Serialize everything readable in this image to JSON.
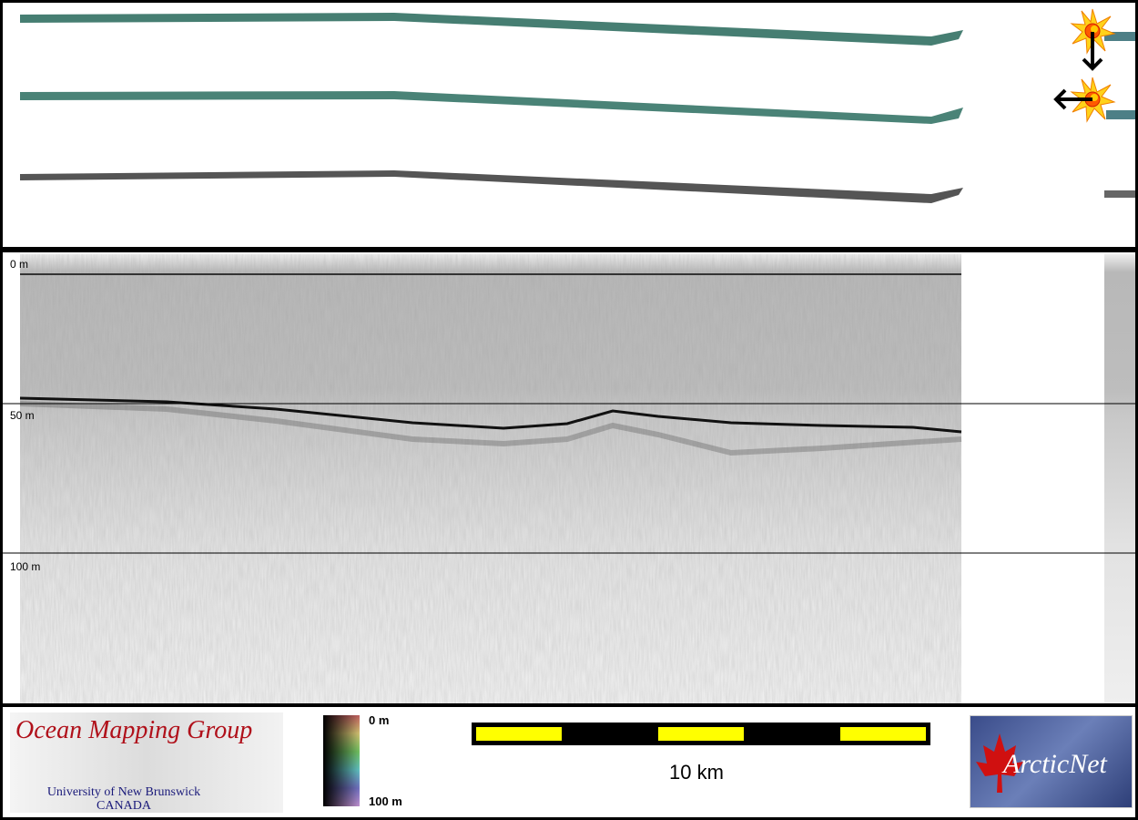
{
  "profile": {
    "depth_labels": [
      "0 m",
      "50 m",
      "100 m"
    ]
  },
  "legend": {
    "colorbar_top": "0 m",
    "colorbar_bottom": "100 m",
    "scale_label": "10 km"
  },
  "logos": {
    "omg_title": "Ocean Mapping Group",
    "omg_subtitle_1": "University of New Brunswick",
    "omg_subtitle_2": "CANADA",
    "arcticnet": "ArcticNet"
  },
  "colors": {
    "scale_yellow": "#ffff00",
    "omg_red": "#b0101a",
    "omg_blue": "#1a1a7a",
    "track_green": "#3f7a6a",
    "track_gray": "#555555"
  },
  "icons": [
    "sun-marker-icon",
    "arrow-down-icon",
    "sun-marker-icon",
    "arrow-left-icon"
  ]
}
